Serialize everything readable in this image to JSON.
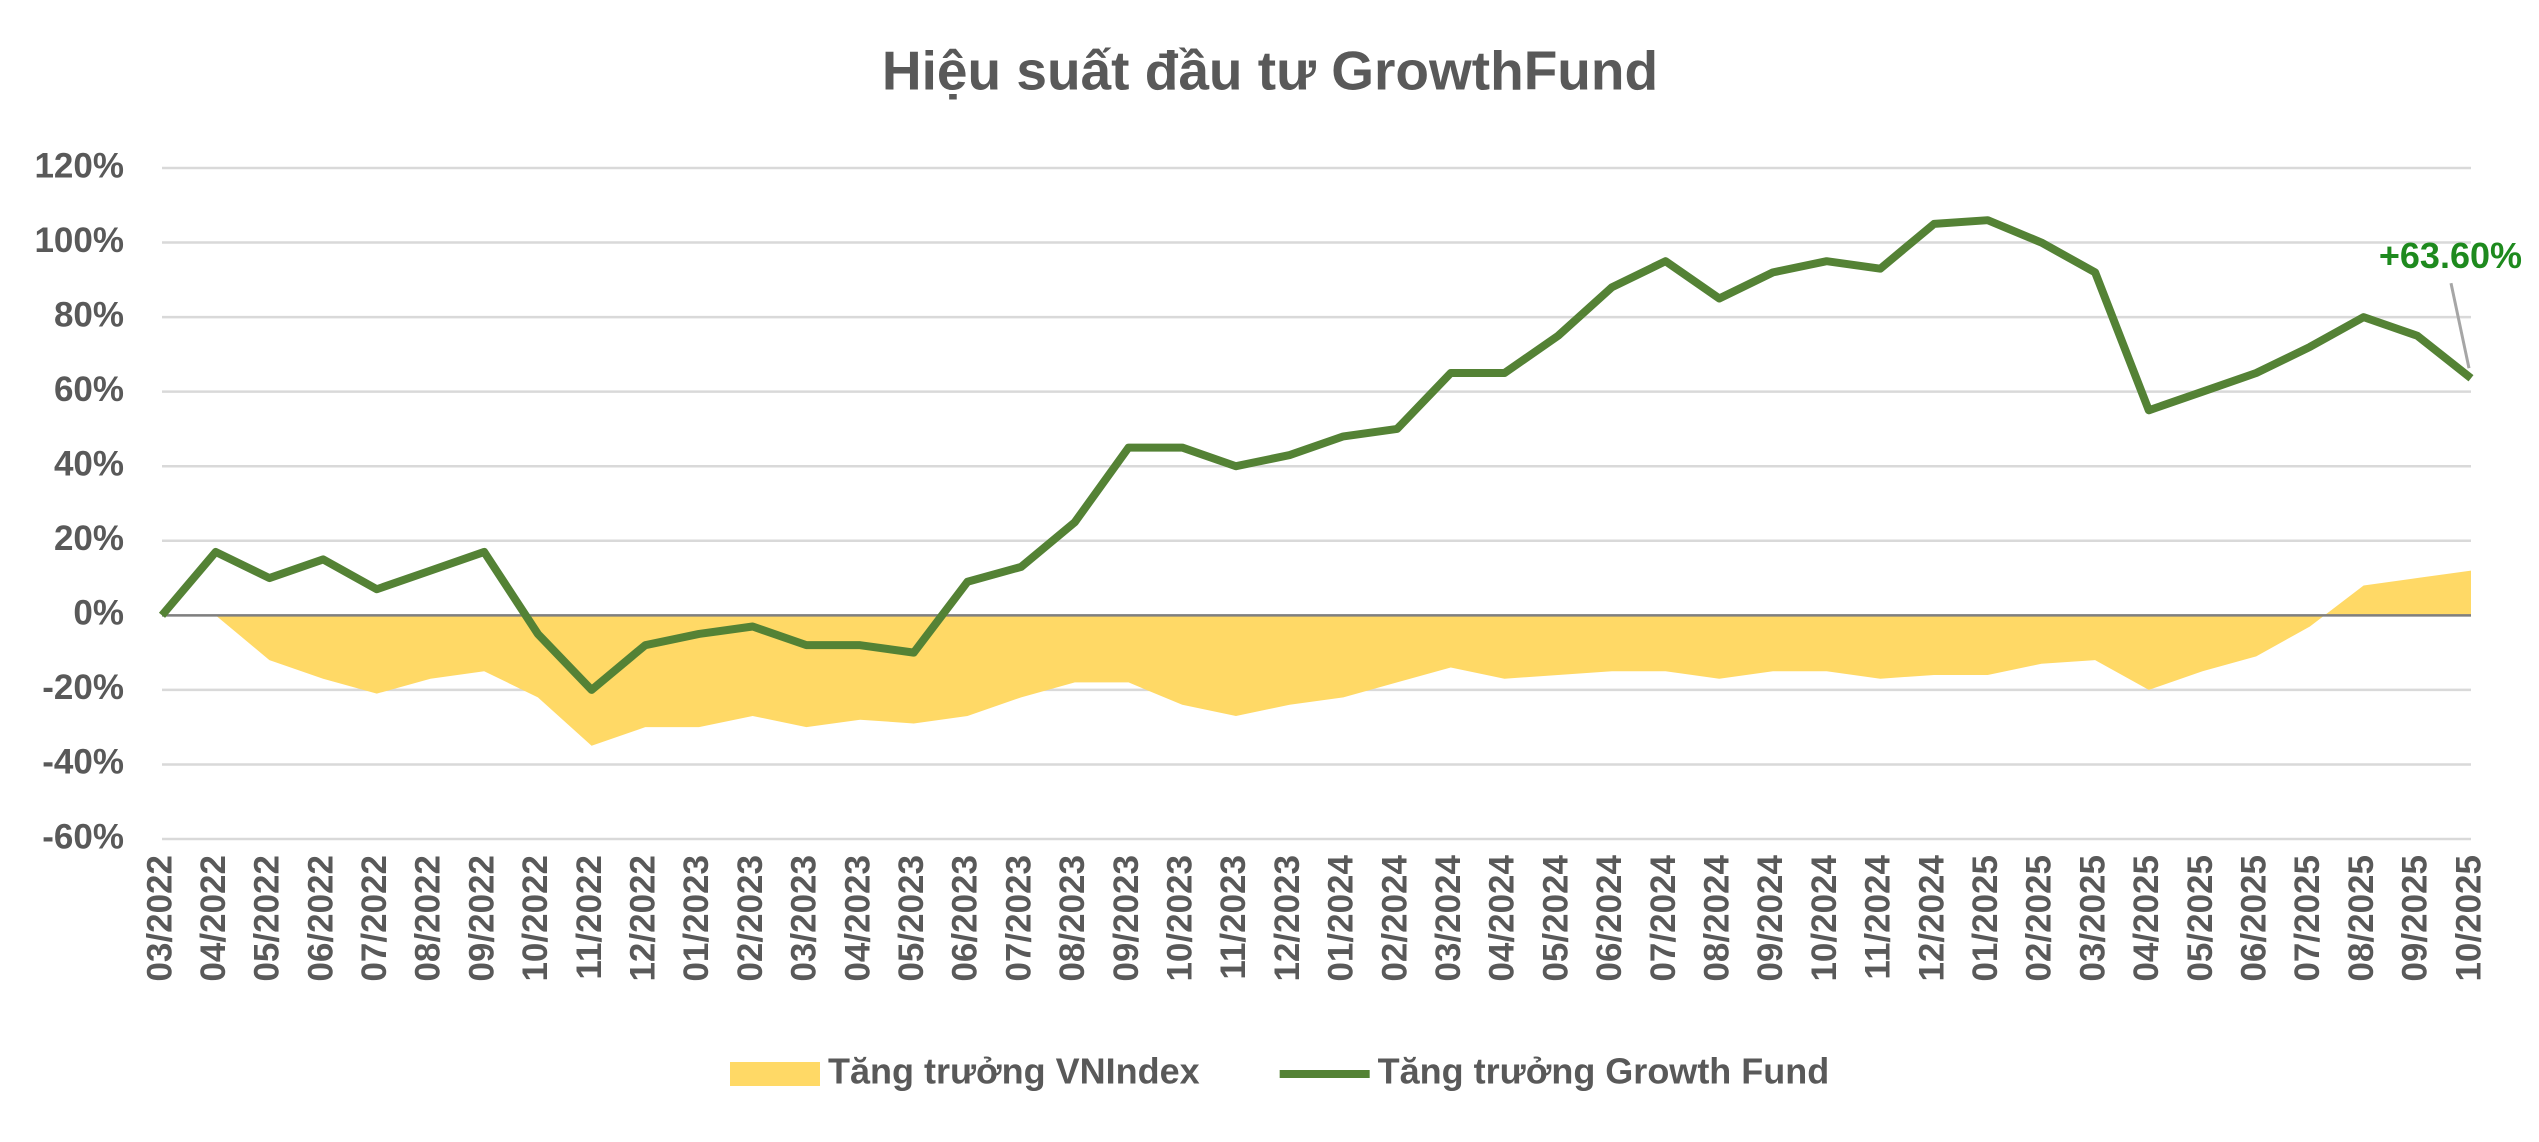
{
  "chart_data": {
    "type": "line",
    "title": "Hiệu suất đầu tư GrowthFund",
    "categories": [
      "03/2022",
      "04/2022",
      "05/2022",
      "06/2022",
      "07/2022",
      "08/2022",
      "09/2022",
      "10/2022",
      "11/2022",
      "12/2022",
      "01/2023",
      "02/2023",
      "03/2023",
      "04/2023",
      "05/2023",
      "06/2023",
      "07/2023",
      "08/2023",
      "09/2023",
      "10/2023",
      "11/2023",
      "12/2023",
      "01/2024",
      "02/2024",
      "03/2024",
      "04/2024",
      "05/2024",
      "06/2024",
      "07/2024",
      "08/2024",
      "09/2024",
      "10/2024",
      "11/2024",
      "12/2024",
      "01/2025",
      "02/2025",
      "03/2025",
      "04/2025",
      "05/2025",
      "06/2025",
      "07/2025",
      "08/2025",
      "09/2025",
      "10/2025"
    ],
    "series": [
      {
        "name": "Tăng trưởng VNIndex",
        "kind": "area",
        "color": "#ffd966",
        "values": [
          0,
          0,
          -12,
          -17,
          -21,
          -17,
          -15,
          -22,
          -35,
          -30,
          -30,
          -27,
          -30,
          -28,
          -29,
          -27,
          -22,
          -18,
          -18,
          -24,
          -27,
          -24,
          -22,
          -18,
          -14,
          -17,
          -16,
          -15,
          -15,
          -17,
          -15,
          -15,
          -17,
          -16,
          -16,
          -13,
          -12,
          -20,
          -15,
          -11,
          -3,
          8,
          10,
          12
        ]
      },
      {
        "name": "Tăng trưởng Growth Fund",
        "kind": "line",
        "color": "#548235",
        "values": [
          0,
          17,
          10,
          15,
          7,
          12,
          17,
          -5,
          -20,
          -8,
          -5,
          -3,
          -8,
          -8,
          -10,
          9,
          13,
          25,
          45,
          45,
          40,
          43,
          48,
          50,
          65,
          65,
          75,
          88,
          95,
          85,
          92,
          95,
          93,
          105,
          106,
          100,
          92,
          55,
          60,
          65,
          72,
          80,
          75,
          63.6
        ]
      }
    ],
    "annotations": [
      {
        "text": "+63.60%",
        "series": 1,
        "color": "#1e8a1e"
      }
    ],
    "ylim": [
      -60,
      120
    ],
    "yticks": [
      {
        "value": -60,
        "label": "-60%"
      },
      {
        "value": -40,
        "label": "-40%"
      },
      {
        "value": -20,
        "label": "-20%"
      },
      {
        "value": 0,
        "label": "0%"
      },
      {
        "value": 20,
        "label": "20%"
      },
      {
        "value": 40,
        "label": "40%"
      },
      {
        "value": 60,
        "label": "60%"
      },
      {
        "value": 80,
        "label": "80%"
      },
      {
        "value": 100,
        "label": "100%"
      },
      {
        "value": 120,
        "label": "120%"
      }
    ],
    "grid": true,
    "legend": "bottom"
  }
}
